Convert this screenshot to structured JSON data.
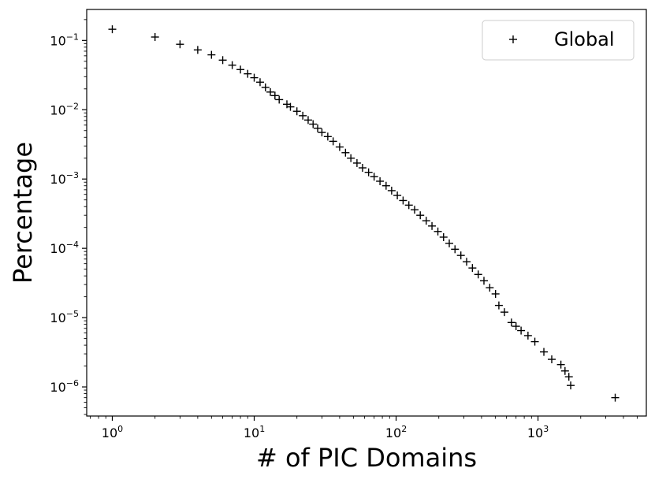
{
  "chart_data": {
    "type": "scatter",
    "xscale": "log",
    "yscale": "log",
    "xlabel": "# of PIC Domains",
    "ylabel": "Percentage",
    "xlim": [
      0.66,
      5800
    ],
    "ylim": [
      3.8e-07,
      0.28
    ],
    "xticks": [
      {
        "value": 1,
        "base": "10",
        "exp": "0"
      },
      {
        "value": 10,
        "base": "10",
        "exp": "1"
      },
      {
        "value": 100,
        "base": "10",
        "exp": "2"
      },
      {
        "value": 1000,
        "base": "10",
        "exp": "3"
      }
    ],
    "yticks": [
      {
        "value": 1e-06,
        "base": "10",
        "exp": "−6"
      },
      {
        "value": 1e-05,
        "base": "10",
        "exp": "−5"
      },
      {
        "value": 0.0001,
        "base": "10",
        "exp": "−4"
      },
      {
        "value": 0.001,
        "base": "10",
        "exp": "−3"
      },
      {
        "value": 0.01,
        "base": "10",
        "exp": "−2"
      },
      {
        "value": 0.1,
        "base": "10",
        "exp": "−1"
      }
    ],
    "legend": {
      "position": "top-right"
    },
    "series": [
      {
        "name": "Global",
        "marker": "+",
        "color": "#000000",
        "points": [
          [
            1,
            0.145
          ],
          [
            2,
            0.112
          ],
          [
            3,
            0.088
          ],
          [
            4,
            0.073
          ],
          [
            5,
            0.062
          ],
          [
            6,
            0.052
          ],
          [
            7,
            0.044
          ],
          [
            8,
            0.038
          ],
          [
            9,
            0.033
          ],
          [
            10,
            0.029
          ],
          [
            11,
            0.025
          ],
          [
            12,
            0.021
          ],
          [
            13,
            0.018
          ],
          [
            14,
            0.016
          ],
          [
            15,
            0.014
          ],
          [
            17,
            0.012
          ],
          [
            18,
            0.011
          ],
          [
            20,
            0.0095
          ],
          [
            22,
            0.0082
          ],
          [
            24,
            0.0071
          ],
          [
            26,
            0.0062
          ],
          [
            28,
            0.0054
          ],
          [
            30,
            0.0047
          ],
          [
            33,
            0.0041
          ],
          [
            36,
            0.0035
          ],
          [
            40,
            0.0029
          ],
          [
            44,
            0.0024
          ],
          [
            48,
            0.002
          ],
          [
            53,
            0.0017
          ],
          [
            58,
            0.00145
          ],
          [
            64,
            0.00125
          ],
          [
            70,
            0.00108
          ],
          [
            77,
            0.00093
          ],
          [
            85,
            0.0008
          ],
          [
            93,
            0.00068
          ],
          [
            102,
            0.00058
          ],
          [
            112,
            0.00049
          ],
          [
            123,
            0.00042
          ],
          [
            135,
            0.00036
          ],
          [
            148,
            0.0003
          ],
          [
            163,
            0.00025
          ],
          [
            179,
            0.00021
          ],
          [
            197,
            0.000175
          ],
          [
            216,
            0.000145
          ],
          [
            237,
            0.000118
          ],
          [
            260,
            9.7e-05
          ],
          [
            286,
            7.9e-05
          ],
          [
            314,
            6.4e-05
          ],
          [
            345,
            5.2e-05
          ],
          [
            379,
            4.2e-05
          ],
          [
            416,
            3.4e-05
          ],
          [
            457,
            2.7e-05
          ],
          [
            502,
            2.2e-05
          ],
          [
            530,
            1.5e-05
          ],
          [
            580,
            1.2e-05
          ],
          [
            650,
            8.5e-06
          ],
          [
            700,
            7.5e-06
          ],
          [
            760,
            6.5e-06
          ],
          [
            850,
            5.5e-06
          ],
          [
            950,
            4.5e-06
          ],
          [
            1100,
            3.2e-06
          ],
          [
            1250,
            2.5e-06
          ],
          [
            1450,
            2.1e-06
          ],
          [
            1550,
            1.7e-06
          ],
          [
            1650,
            1.4e-06
          ],
          [
            1700,
            1.05e-06
          ],
          [
            3500,
            7e-07
          ]
        ]
      }
    ]
  }
}
